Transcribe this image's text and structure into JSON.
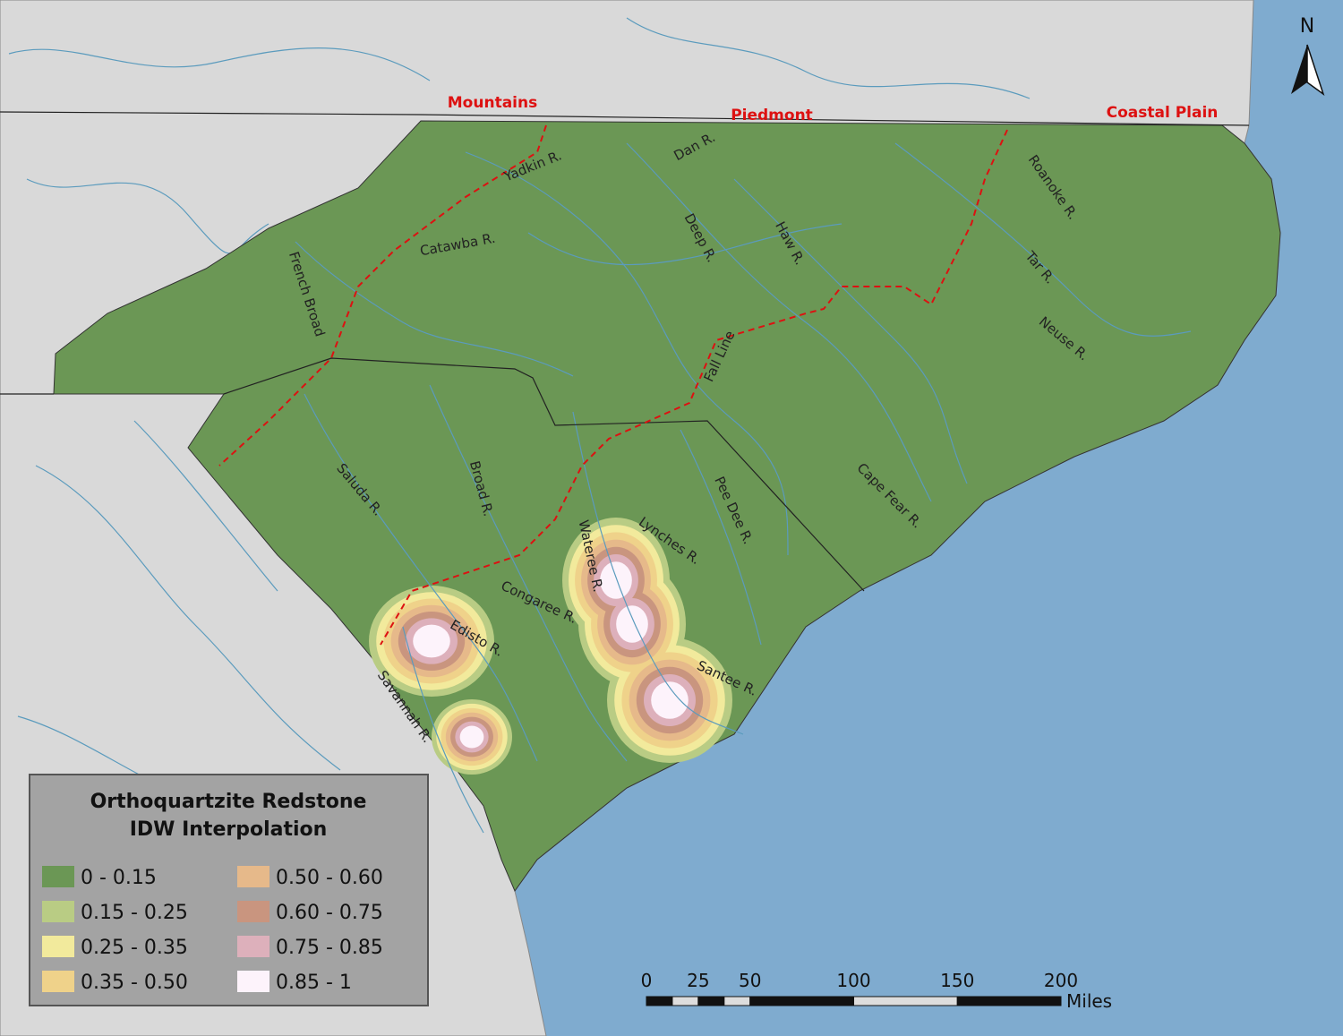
{
  "header": {
    "regions": [
      "Mountains",
      "Piedmont",
      "Coastal Plain"
    ],
    "north": "N"
  },
  "rivers": [
    "Yadkin R.",
    "Dan R.",
    "Catawba R.",
    "French Broad",
    "Deep R.",
    "Haw R.",
    "Roanoke R.",
    "Tar R.",
    "Neuse R.",
    "Saluda R.",
    "Broad R.",
    "Pee Dee R.",
    "Lynches R.",
    "Cape Fear R.",
    "Wateree R.",
    "Congaree R.",
    "Edisto R.",
    "Santee R.",
    "Savannah R."
  ],
  "fall_line": "Fall Line",
  "legend": {
    "title": [
      "Orthoquartzite Redstone",
      "IDW Interpolation"
    ],
    "items": [
      {
        "label": "0 - 0.15",
        "color": "#6b9755"
      },
      {
        "label": "0.15 - 0.25",
        "color": "#b9cc84"
      },
      {
        "label": "0.25 - 0.35",
        "color": "#f2ea9c"
      },
      {
        "label": "0.35 - 0.50",
        "color": "#efd28a"
      },
      {
        "label": "0.50 - 0.60",
        "color": "#e6b98a"
      },
      {
        "label": "0.60 - 0.75",
        "color": "#c9957f"
      },
      {
        "label": "0.75 - 0.85",
        "color": "#ddb0bb"
      },
      {
        "label": "0.85 - 1",
        "color": "#fdf3fb"
      }
    ]
  },
  "scale_bar": {
    "ticks": [
      0,
      25,
      50,
      100,
      150,
      200
    ],
    "unit": "Miles"
  }
}
